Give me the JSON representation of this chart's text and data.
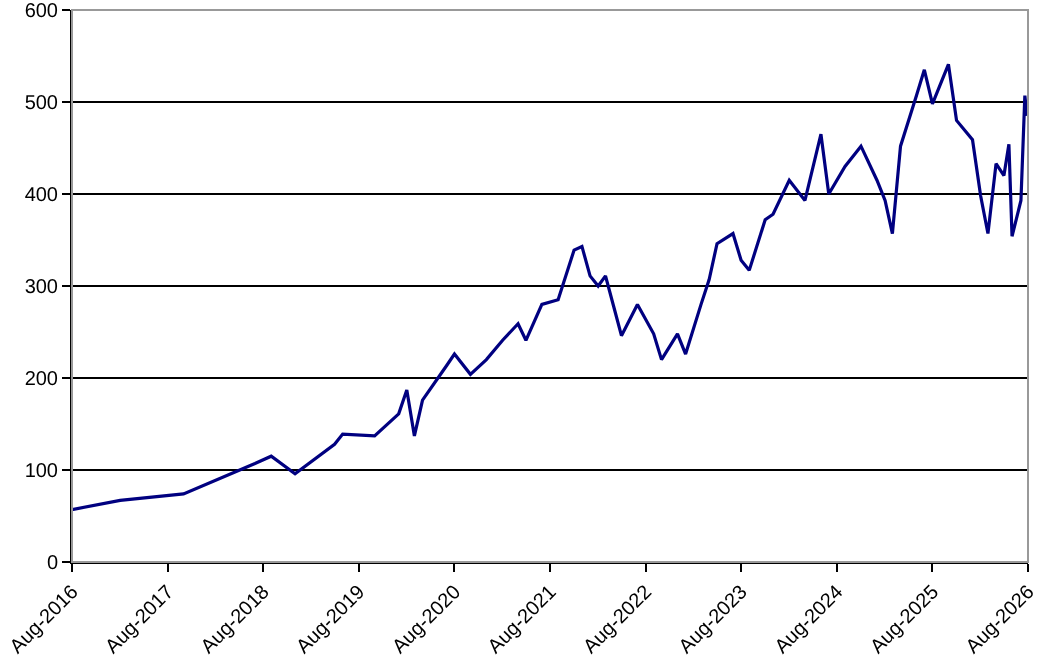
{
  "chart_data": {
    "type": "line",
    "x": [
      "2016-08",
      "2017-02",
      "2017-10",
      "2018-07",
      "2018-09",
      "2018-12",
      "2019-05",
      "2019-06",
      "2019-10",
      "2020-01",
      "2020-02",
      "2020-03",
      "2020-04",
      "2020-07",
      "2020-08",
      "2020-10",
      "2020-12",
      "2021-02",
      "2021-04",
      "2021-05",
      "2021-07",
      "2021-09",
      "2021-11",
      "2021-12",
      "2022-01",
      "2022-02",
      "2022-03",
      "2022-04",
      "2022-05",
      "2022-07",
      "2022-09",
      "2022-10",
      "2022-12",
      "2023-01",
      "2023-03",
      "2023-04",
      "2023-05",
      "2023-07",
      "2023-08",
      "2023-09",
      "2023-11",
      "2023-12",
      "2024-02",
      "2024-04",
      "2024-06",
      "2024-07",
      "2024-09",
      "2024-11",
      "2025-01",
      "2025-02",
      "2025-03",
      "2025-04",
      "2025-06",
      "2025-07",
      "2025-08",
      "2025-10",
      "2025-11",
      "2026-01",
      "2026-02",
      "2026-03",
      "2026-04",
      "2026-05",
      "2026-05-20",
      "2026-06",
      "2026-07-05",
      "2026-07-20",
      "2026-07-28"
    ],
    "series": [
      {
        "color": "#000080",
        "values": [
          57,
          67,
          74,
          107,
          115,
          96,
          128,
          139,
          137,
          161,
          187,
          137,
          176,
          213,
          226,
          204,
          220,
          241,
          259,
          241,
          280,
          285,
          339,
          343,
          311,
          300,
          311,
          278,
          246,
          280,
          248,
          220,
          248,
          226,
          280,
          307,
          346,
          357,
          328,
          317,
          372,
          378,
          415,
          393,
          465,
          400,
          430,
          452,
          415,
          393,
          357,
          452,
          507,
          535,
          498,
          541,
          480,
          459,
          398,
          357,
          433,
          420,
          454,
          354,
          393,
          507,
          485
        ]
      }
    ],
    "xlim": [
      "2016-08",
      "2026-08"
    ],
    "xticks": [
      {
        "value": "2016-08",
        "label": "Aug-2016"
      },
      {
        "value": "2017-08",
        "label": "Aug-2017"
      },
      {
        "value": "2018-08",
        "label": "Aug-2018"
      },
      {
        "value": "2019-08",
        "label": "Aug-2019"
      },
      {
        "value": "2020-08",
        "label": "Aug-2020"
      },
      {
        "value": "2021-08",
        "label": "Aug-2021"
      },
      {
        "value": "2022-08",
        "label": "Aug-2022"
      },
      {
        "value": "2023-08",
        "label": "Aug-2023"
      },
      {
        "value": "2024-08",
        "label": "Aug-2024"
      },
      {
        "value": "2025-08",
        "label": "Aug-2025"
      },
      {
        "value": "2026-08",
        "label": "Aug-2026"
      }
    ],
    "ylim": [
      0,
      600
    ],
    "yticks": [
      0,
      100,
      200,
      300,
      400,
      500,
      600
    ],
    "grid": "y",
    "legend": false,
    "marker": "none",
    "line_style": "solid"
  }
}
